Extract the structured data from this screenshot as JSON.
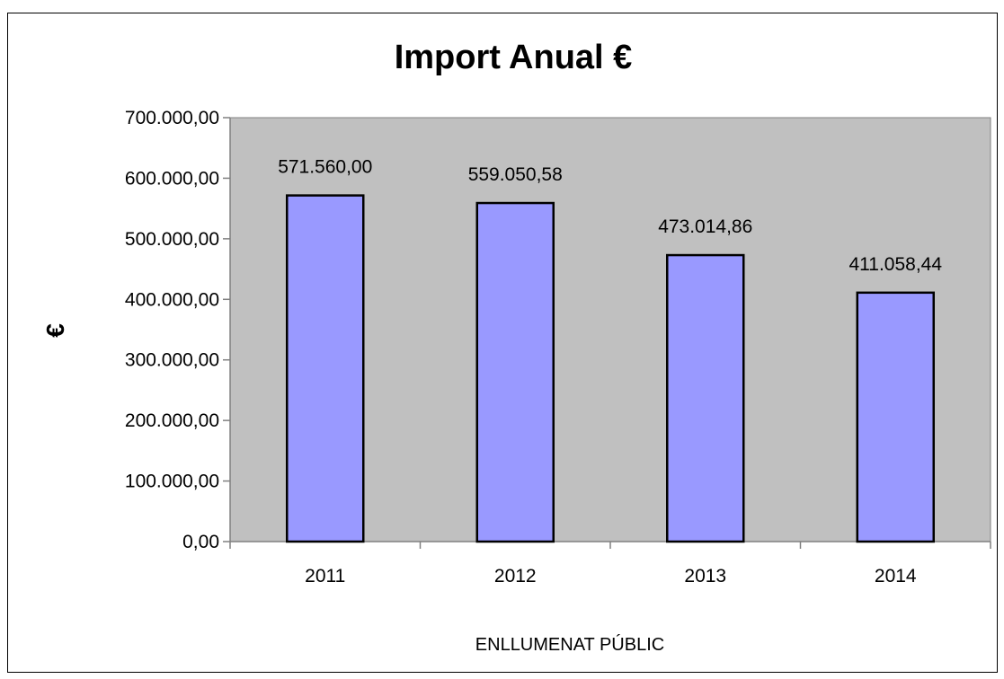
{
  "chart_data": {
    "type": "bar",
    "title": "Import Anual €",
    "xlabel": "ENLLUMENAT PÚBLIC",
    "ylabel": "€",
    "categories": [
      "2011",
      "2012",
      "2013",
      "2014"
    ],
    "values": [
      571560.0,
      559050.58,
      473014.86,
      411058.44
    ],
    "value_labels": [
      "571.560,00",
      "559.050,58",
      "473.014,86",
      "411.058,44"
    ],
    "ylim": [
      0,
      700000
    ],
    "yticks": [
      0,
      100000,
      200000,
      300000,
      400000,
      500000,
      600000,
      700000
    ],
    "ytick_labels": [
      "0,00",
      "100.000,00",
      "200.000,00",
      "300.000,00",
      "400.000,00",
      "500.000,00",
      "600.000,00",
      "700.000,00"
    ],
    "grid": false,
    "legend": "none",
    "colors": {
      "bar_fill": "#9999ff",
      "bar_stroke": "#000000",
      "plot_background": "#c0c0c0",
      "axis": "#808080"
    }
  }
}
